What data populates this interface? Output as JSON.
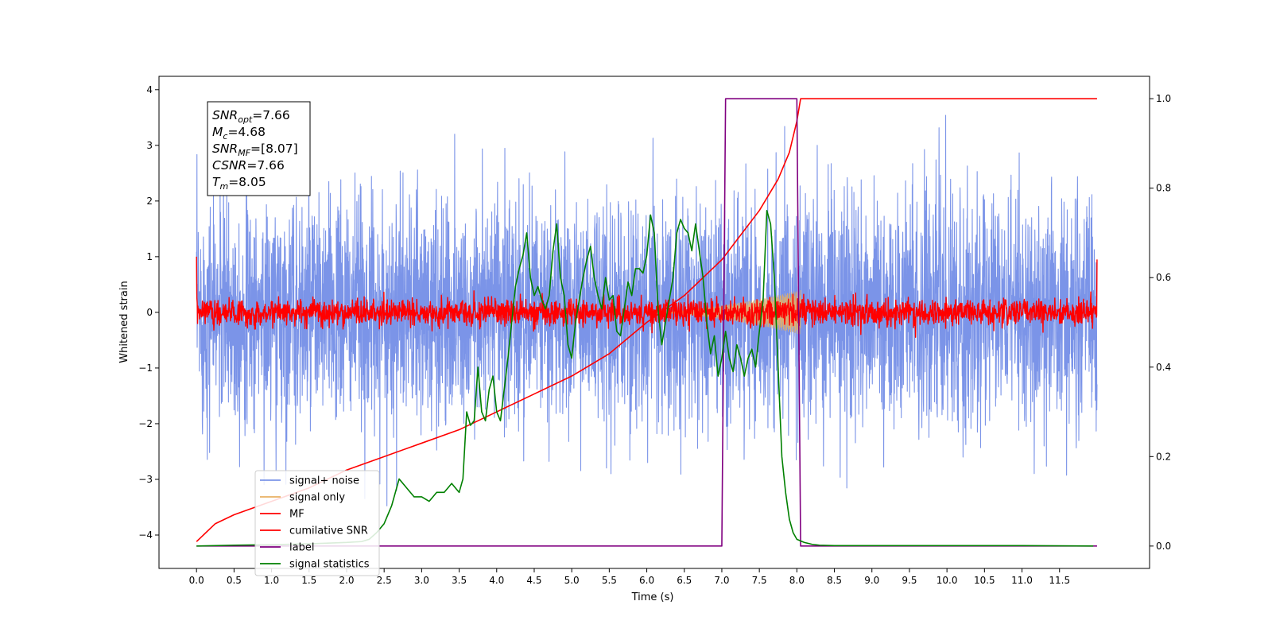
{
  "chart_data": {
    "type": "line",
    "xlabel": "Time (s)",
    "ylabel": "Whitened strain",
    "xlim": [
      -0.5,
      12.7
    ],
    "ylim": [
      -4.6,
      4.24
    ],
    "y2lim": [
      -0.05,
      1.05
    ],
    "x_ticks": [
      0.0,
      0.5,
      1.0,
      1.5,
      2.0,
      2.5,
      3.0,
      3.5,
      4.0,
      4.5,
      5.0,
      5.5,
      6.0,
      6.5,
      7.0,
      7.5,
      8.0,
      8.5,
      9.0,
      9.5,
      10.0,
      10.5,
      11.0,
      11.5
    ],
    "x_tick_labels": [
      "0.0",
      "0.5",
      "1.0",
      "1.5",
      "2.0",
      "2.5",
      "3.0",
      "3.5",
      "4.0",
      "4.5",
      "5.0",
      "5.5",
      "6.0",
      "6.5",
      "7.0",
      "7.5",
      "8.0",
      "8.5",
      "9.0",
      "9.5",
      "10.0",
      "10.5",
      "11.0",
      "11.5"
    ],
    "y_ticks": [
      -4,
      -3,
      -2,
      -1,
      0,
      1,
      2,
      3,
      4
    ],
    "y_tick_labels": [
      "−4",
      "−3",
      "−2",
      "−1",
      "0",
      "1",
      "2",
      "3",
      "4"
    ],
    "y2_ticks": [
      0.0,
      0.2,
      0.4,
      0.6,
      0.8,
      1.0
    ],
    "y2_tick_labels": [
      "0.0",
      "0.2",
      "0.4",
      "0.6",
      "0.8",
      "1.0"
    ],
    "grid": false,
    "legend_position": "lower-left",
    "annotation": [
      {
        "base": "SNR",
        "sub": "opt",
        "value": "=7.66"
      },
      {
        "base": "M",
        "sub": "c",
        "value": "=4.68"
      },
      {
        "base": "SNR",
        "sub": "MF",
        "value": "=[8.07]"
      },
      {
        "base": "CSNR",
        "sub": "",
        "value": "=7.66"
      },
      {
        "base": "T",
        "sub": "m",
        "value": "=8.05"
      }
    ],
    "series": [
      {
        "name": "signal+ noise",
        "color": "#7b94e8",
        "axis": "left",
        "style": "noise",
        "x_range": [
          0.0,
          12.0
        ],
        "amplitude": 1.0,
        "peak_range": [
          -4.15,
          3.83
        ]
      },
      {
        "name": "signal only",
        "color": "#e8b062",
        "axis": "left",
        "style": "chirp",
        "x_range": [
          6.0,
          8.05
        ],
        "max_amplitude": 0.4
      },
      {
        "name": "MF",
        "color": "#ff0000",
        "axis": "left",
        "style": "noise",
        "x_range": [
          0.0,
          12.0
        ],
        "amplitude": 0.12,
        "edge_values": [
          1.0,
          0.95
        ]
      },
      {
        "name": "cumilative SNR",
        "color": "#ff0000",
        "axis": "right",
        "x": [
          0.0,
          0.25,
          0.5,
          1.0,
          1.5,
          2.0,
          2.5,
          3.0,
          3.5,
          4.0,
          4.5,
          5.0,
          5.5,
          6.0,
          6.5,
          7.0,
          7.5,
          7.75,
          7.9,
          8.0,
          8.05,
          12.0
        ],
        "y": [
          0.01,
          0.05,
          0.07,
          0.1,
          0.13,
          0.17,
          0.2,
          0.23,
          0.26,
          0.3,
          0.34,
          0.38,
          0.43,
          0.5,
          0.56,
          0.64,
          0.75,
          0.82,
          0.88,
          0.95,
          1.0,
          1.0
        ]
      },
      {
        "name": "label",
        "color": "#800080",
        "axis": "right",
        "x": [
          0.0,
          7.0,
          7.05,
          8.0,
          8.05,
          12.0
        ],
        "y": [
          0.0,
          0.0,
          1.0,
          1.0,
          0.0,
          0.0
        ]
      },
      {
        "name": "signal statistics",
        "color": "#008000",
        "axis": "right",
        "x": [
          0.0,
          0.5,
          1.0,
          1.5,
          2.0,
          2.2,
          2.3,
          2.4,
          2.5,
          2.6,
          2.7,
          2.8,
          2.9,
          3.0,
          3.1,
          3.2,
          3.3,
          3.4,
          3.5,
          3.55,
          3.6,
          3.65,
          3.7,
          3.75,
          3.8,
          3.85,
          3.9,
          3.95,
          4.0,
          4.05,
          4.1,
          4.15,
          4.2,
          4.25,
          4.3,
          4.35,
          4.4,
          4.45,
          4.5,
          4.55,
          4.6,
          4.65,
          4.7,
          4.75,
          4.8,
          4.85,
          4.9,
          4.95,
          5.0,
          5.05,
          5.1,
          5.15,
          5.2,
          5.25,
          5.3,
          5.35,
          5.4,
          5.45,
          5.5,
          5.55,
          5.6,
          5.65,
          5.7,
          5.75,
          5.8,
          5.85,
          5.9,
          5.95,
          6.0,
          6.05,
          6.1,
          6.15,
          6.2,
          6.25,
          6.3,
          6.35,
          6.4,
          6.45,
          6.5,
          6.55,
          6.6,
          6.65,
          6.7,
          6.75,
          6.8,
          6.85,
          6.9,
          6.95,
          7.0,
          7.05,
          7.1,
          7.15,
          7.2,
          7.25,
          7.3,
          7.35,
          7.4,
          7.45,
          7.5,
          7.55,
          7.6,
          7.65,
          7.7,
          7.75,
          7.8,
          7.85,
          7.9,
          7.95,
          8.0,
          8.1,
          8.2,
          8.3,
          8.5,
          9.0,
          10.0,
          11.0,
          11.95
        ],
        "y": [
          0.0,
          0.002,
          0.003,
          0.005,
          0.008,
          0.01,
          0.015,
          0.03,
          0.05,
          0.09,
          0.15,
          0.13,
          0.11,
          0.11,
          0.1,
          0.12,
          0.12,
          0.14,
          0.12,
          0.15,
          0.3,
          0.27,
          0.28,
          0.4,
          0.3,
          0.28,
          0.35,
          0.38,
          0.3,
          0.28,
          0.35,
          0.42,
          0.5,
          0.58,
          0.62,
          0.65,
          0.7,
          0.6,
          0.56,
          0.58,
          0.55,
          0.53,
          0.56,
          0.66,
          0.72,
          0.6,
          0.56,
          0.45,
          0.42,
          0.5,
          0.55,
          0.6,
          0.64,
          0.67,
          0.6,
          0.56,
          0.53,
          0.6,
          0.55,
          0.56,
          0.48,
          0.47,
          0.53,
          0.59,
          0.56,
          0.62,
          0.62,
          0.61,
          0.65,
          0.74,
          0.7,
          0.53,
          0.45,
          0.5,
          0.55,
          0.6,
          0.7,
          0.73,
          0.71,
          0.7,
          0.66,
          0.72,
          0.66,
          0.6,
          0.5,
          0.43,
          0.47,
          0.38,
          0.42,
          0.48,
          0.42,
          0.39,
          0.45,
          0.42,
          0.38,
          0.42,
          0.44,
          0.4,
          0.48,
          0.55,
          0.75,
          0.72,
          0.6,
          0.4,
          0.2,
          0.12,
          0.06,
          0.03,
          0.015,
          0.008,
          0.004,
          0.002,
          0.001,
          0.001,
          0.001,
          0.001,
          0.0
        ]
      }
    ]
  }
}
